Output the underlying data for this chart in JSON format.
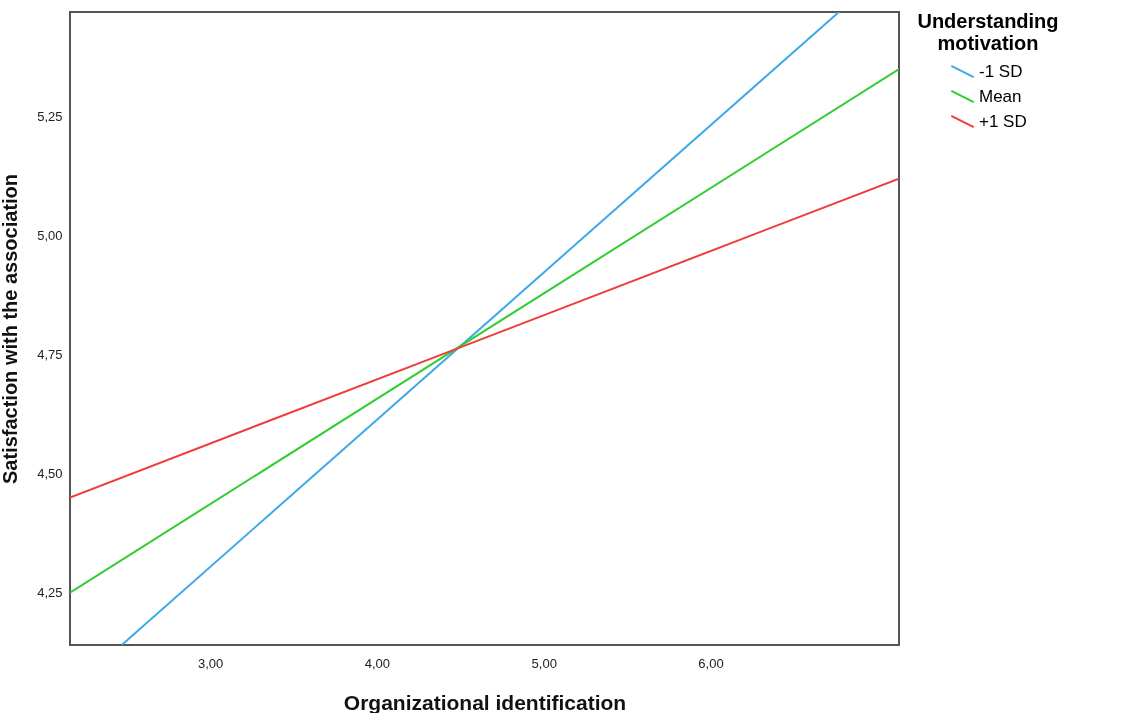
{
  "chart_data": {
    "type": "line",
    "xlabel": "Organizational identification",
    "ylabel": "Satisfaction with the association",
    "legend_title": "Understanding motivation",
    "legend": "top right",
    "grid": false,
    "xlim": [
      2.16,
      7.13
    ],
    "ylim": [
      4.14,
      5.47
    ],
    "xticks": [
      {
        "value": 3,
        "label": "3,00"
      },
      {
        "value": 4,
        "label": "4,00"
      },
      {
        "value": 5,
        "label": "5,00"
      },
      {
        "value": 6,
        "label": "6,00"
      }
    ],
    "yticks": [
      {
        "value": 4.25,
        "label": "4,25"
      },
      {
        "value": 4.5,
        "label": "4,50"
      },
      {
        "value": 4.75,
        "label": "4,75"
      },
      {
        "value": 5,
        "label": "5,00"
      },
      {
        "value": 5.25,
        "label": "5,25"
      }
    ],
    "series": [
      {
        "name": "-1 SD",
        "color": "#3fa9e8",
        "x": [
          2.47,
          6.77
        ],
        "values": [
          4.14,
          5.47
        ]
      },
      {
        "name": "Mean",
        "color": "#33cc33",
        "x": [
          2.16,
          7.13
        ],
        "values": [
          4.25,
          5.35
        ]
      },
      {
        "name": "+1 SD",
        "color": "#f03c3c",
        "x": [
          2.16,
          7.13
        ],
        "values": [
          4.45,
          5.12
        ]
      }
    ]
  }
}
